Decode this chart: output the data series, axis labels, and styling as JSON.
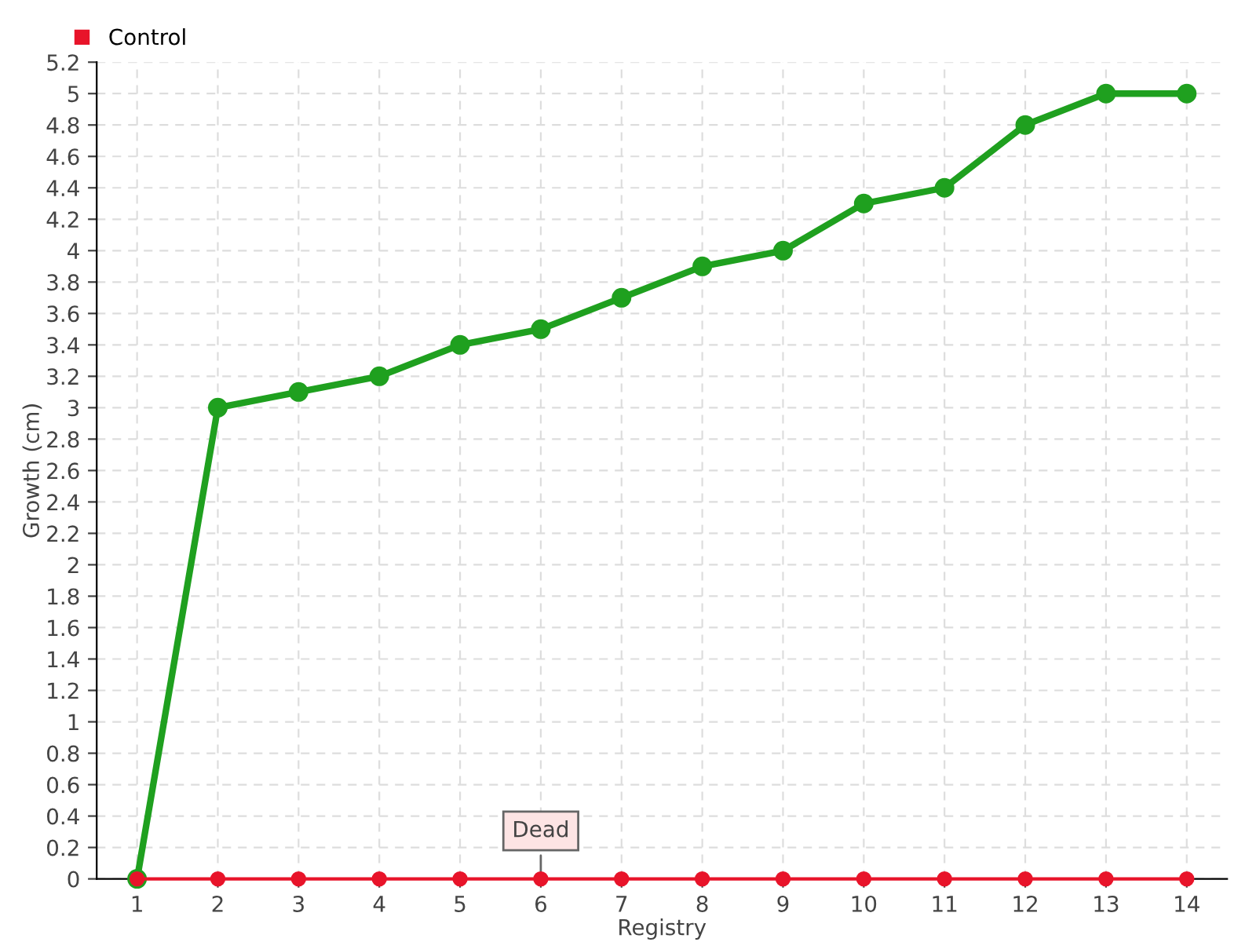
{
  "chart_data": {
    "type": "line",
    "xlabel": "Registry",
    "ylabel": "Growth (cm)",
    "categories": [
      "1",
      "2",
      "3",
      "4",
      "5",
      "6",
      "7",
      "8",
      "9",
      "10",
      "11",
      "12",
      "13",
      "14"
    ],
    "series": [
      {
        "color": "#1fa01f",
        "values": [
          0,
          3,
          3.1,
          3.2,
          3.4,
          3.5,
          3.7,
          3.9,
          4,
          4.3,
          4.4,
          4.8,
          5,
          5
        ]
      },
      {
        "name": "Control",
        "color": "#e8142a",
        "values": [
          0,
          0,
          0,
          0,
          0,
          0,
          0,
          0,
          0,
          0,
          0,
          0,
          0,
          0
        ]
      }
    ],
    "ylim": [
      0,
      5.2
    ],
    "yticks": [
      0,
      0.2,
      0.4,
      0.6,
      0.8,
      1,
      1.2,
      1.4,
      1.6,
      1.8,
      2,
      2.2,
      2.4,
      2.6,
      2.8,
      3,
      3.2,
      3.4,
      3.6,
      3.8,
      4,
      4.2,
      4.4,
      4.6,
      4.8,
      5,
      5.2
    ],
    "annotations": [
      {
        "text": "Dead",
        "x": "6",
        "y": 0
      }
    ],
    "grid": true,
    "legend": "top left",
    "marker": "circle"
  }
}
